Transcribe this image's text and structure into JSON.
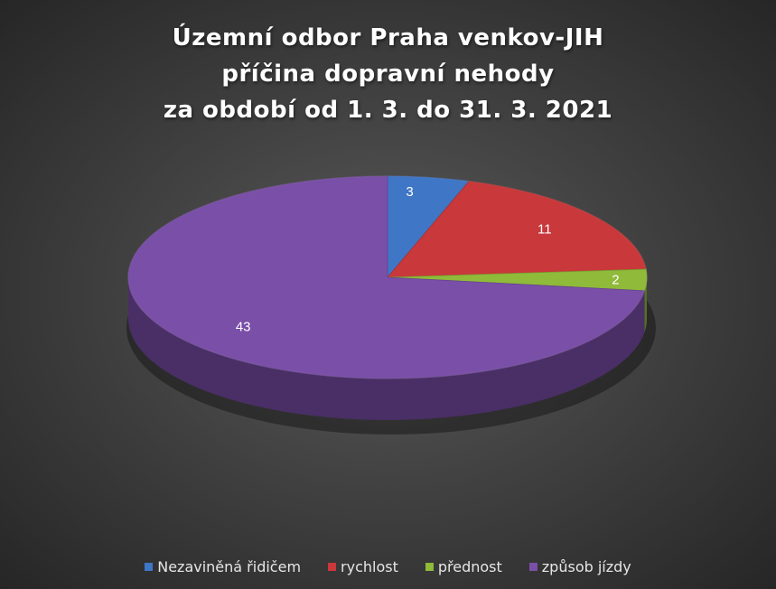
{
  "chart_data": {
    "type": "pie",
    "title_lines": [
      "Územní odbor Praha venkov-JIH",
      "příčina dopravní nehody",
      "za období od 1. 3. do 31. 3. 2021"
    ],
    "categories": [
      "Nezaviněná řidičem",
      "rychlost",
      "přednost",
      "způsob jízdy"
    ],
    "values": [
      3,
      11,
      2,
      43
    ],
    "colors": [
      "#3f76c6",
      "#c9383a",
      "#8fba3a",
      "#7a4fa8"
    ],
    "data_labels": [
      "3",
      "11",
      "2",
      "43"
    ],
    "legend_position": "bottom",
    "style": "3d"
  }
}
